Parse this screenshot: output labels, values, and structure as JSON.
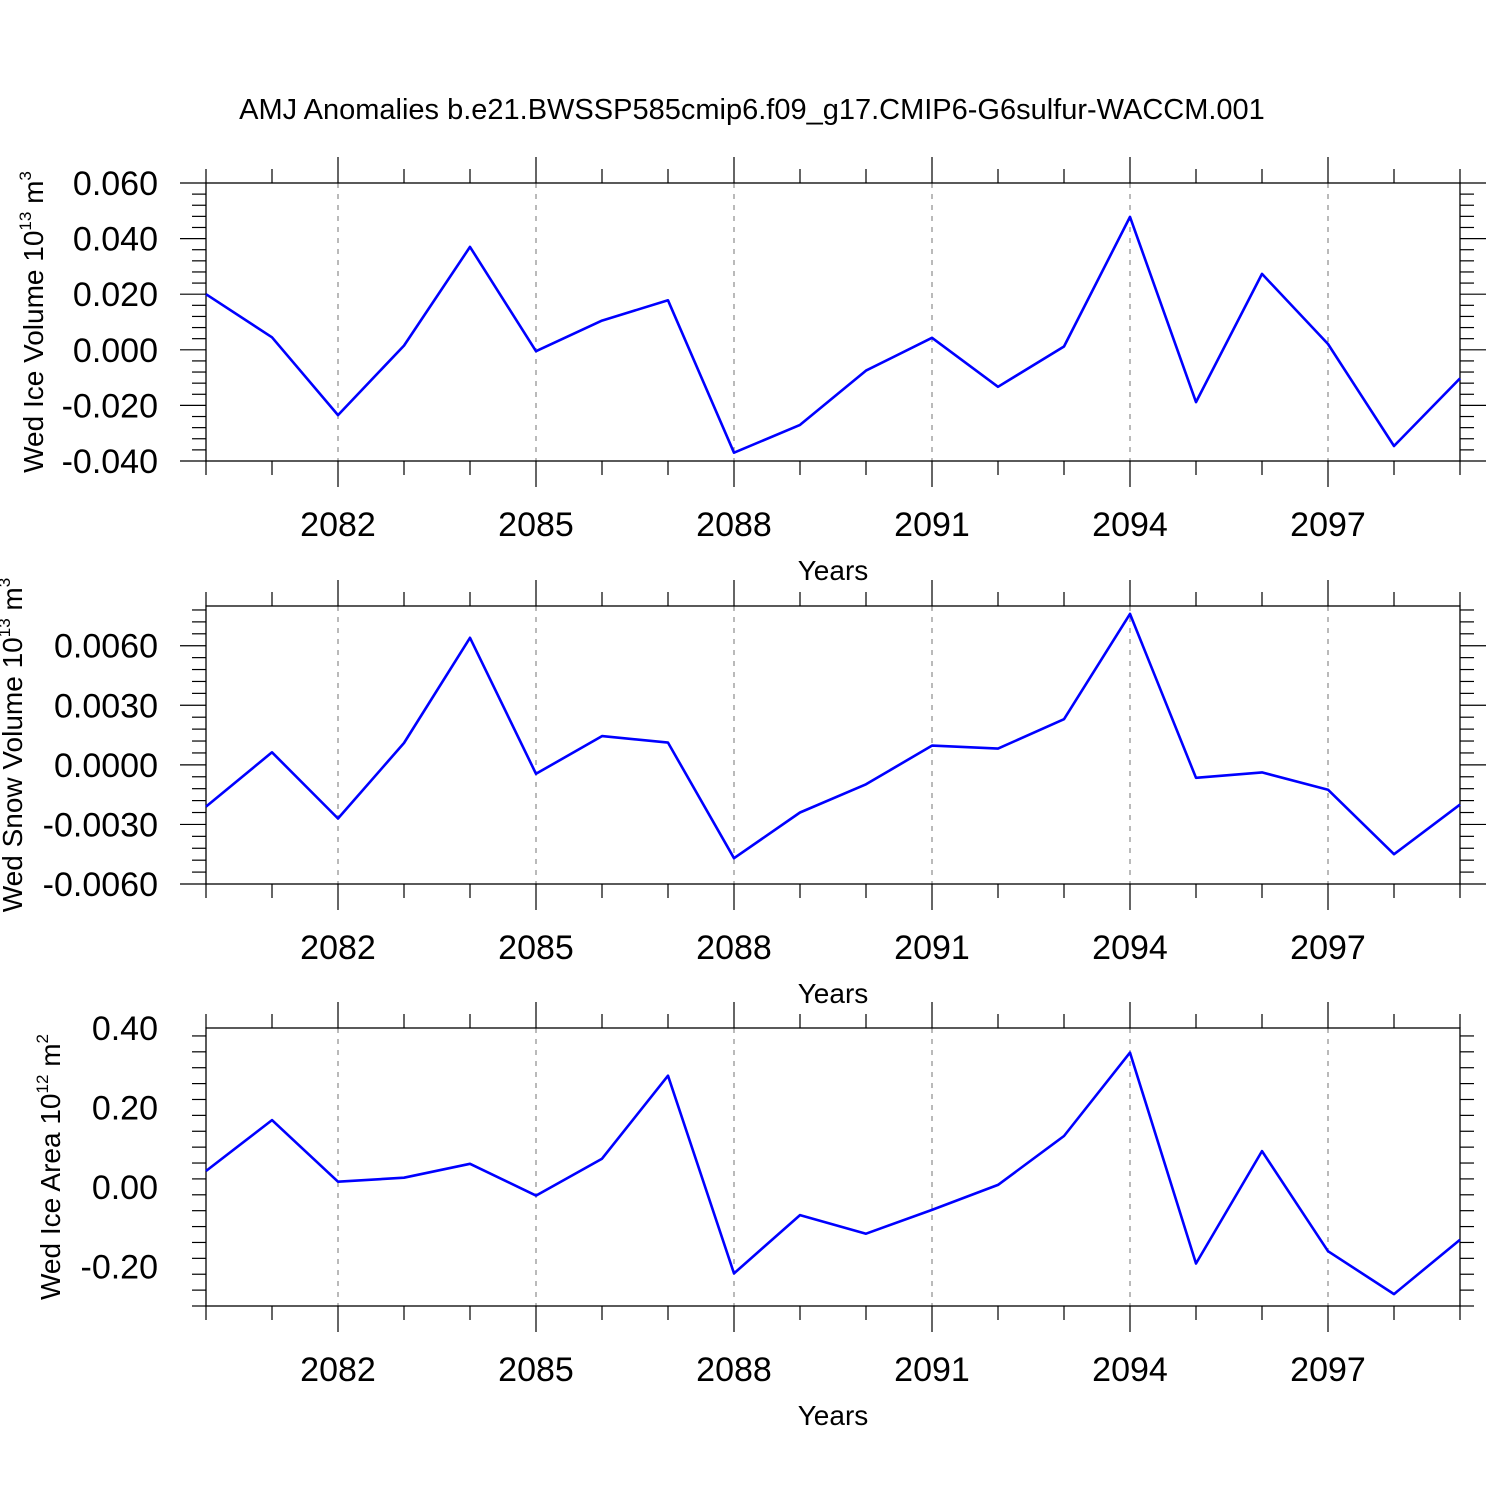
{
  "title": "AMJ Anomalies b.e21.BWSSP585cmip6.f09_g17.CMIP6-G6sulfur-WACCM.001",
  "line_color": "#0000ff",
  "chart_data": [
    {
      "type": "line",
      "xlabel": "Years",
      "ylabel": {
        "prefix": "Wed Ice Volume 10",
        "exp": "13",
        "unit": " m",
        "unit_exp": "3"
      },
      "x": [
        2080,
        2081,
        2082,
        2083,
        2084,
        2085,
        2086,
        2087,
        2088,
        2089,
        2090,
        2091,
        2092,
        2093,
        2094,
        2095,
        2096,
        2097,
        2098,
        2099
      ],
      "xlim": [
        2080,
        2099
      ],
      "xticks": [
        2082,
        2085,
        2088,
        2091,
        2094,
        2097
      ],
      "xtick_labels": [
        "2082",
        "2085",
        "2088",
        "2091",
        "2094",
        "2097"
      ],
      "ylim": [
        -0.04,
        0.06
      ],
      "yticks": [
        -0.04,
        -0.02,
        0.0,
        0.02,
        0.04,
        0.06
      ],
      "ytick_labels": [
        "-0.040",
        "-0.020",
        "0.000",
        "0.020",
        "0.040",
        "0.060"
      ],
      "grid": "vertical dashed at major x ticks",
      "series": [
        {
          "values": [
            0.02,
            0.0045,
            -0.0235,
            0.0015,
            0.037,
            -0.0005,
            0.0105,
            0.0178,
            -0.037,
            -0.027,
            -0.0075,
            0.0043,
            -0.0133,
            0.0012,
            0.0478,
            -0.0188,
            0.0273,
            0.0021,
            -0.0346,
            -0.0103
          ]
        }
      ]
    },
    {
      "type": "line",
      "xlabel": "Years",
      "ylabel": {
        "prefix": "Wed Snow Volume 10",
        "exp": "13",
        "unit": " m",
        "unit_exp": "3"
      },
      "x": [
        2080,
        2081,
        2082,
        2083,
        2084,
        2085,
        2086,
        2087,
        2088,
        2089,
        2090,
        2091,
        2092,
        2093,
        2094,
        2095,
        2096,
        2097,
        2098,
        2099
      ],
      "xlim": [
        2080,
        2099
      ],
      "xticks": [
        2082,
        2085,
        2088,
        2091,
        2094,
        2097
      ],
      "xtick_labels": [
        "2082",
        "2085",
        "2088",
        "2091",
        "2094",
        "2097"
      ],
      "ylim": [
        -0.006,
        0.008
      ],
      "yticks": [
        -0.006,
        -0.003,
        0.0,
        0.003,
        0.006
      ],
      "ytick_labels": [
        "-0.0060",
        "-0.0030",
        "0.0000",
        "0.0030",
        "0.0060"
      ],
      "grid": "vertical dashed at major x ticks",
      "series": [
        {
          "values": [
            -0.0021,
            0.00063,
            -0.0027,
            0.0011,
            0.0064,
            -0.00045,
            0.00145,
            0.00112,
            -0.0047,
            -0.0024,
            -0.00098,
            0.00097,
            0.00082,
            0.0023,
            0.0076,
            -0.00065,
            -0.00038,
            -0.00125,
            -0.0045,
            -0.002
          ]
        }
      ]
    },
    {
      "type": "line",
      "xlabel": "Years",
      "ylabel": {
        "prefix": "Wed Ice Area 10",
        "exp": "12",
        "unit": " m",
        "unit_exp": "2"
      },
      "x": [
        2080,
        2081,
        2082,
        2083,
        2084,
        2085,
        2086,
        2087,
        2088,
        2089,
        2090,
        2091,
        2092,
        2093,
        2094,
        2095,
        2096,
        2097,
        2098,
        2099
      ],
      "xlim": [
        2080,
        2099
      ],
      "xticks": [
        2082,
        2085,
        2088,
        2091,
        2094,
        2097
      ],
      "xtick_labels": [
        "2082",
        "2085",
        "2088",
        "2091",
        "2094",
        "2097"
      ],
      "ylim": [
        -0.3,
        0.4
      ],
      "yticks": [
        -0.2,
        0.0,
        0.2,
        0.4
      ],
      "ytick_labels": [
        "-0.20",
        "0.00",
        "0.20",
        "0.40"
      ],
      "grid": "vertical dashed at major x ticks",
      "series": [
        {
          "values": [
            0.04,
            0.168,
            0.013,
            0.023,
            0.058,
            -0.022,
            0.071,
            0.28,
            -0.218,
            -0.071,
            -0.118,
            -0.058,
            0.005,
            0.128,
            0.338,
            -0.193,
            0.09,
            -0.162,
            -0.27,
            -0.133
          ]
        }
      ]
    }
  ]
}
